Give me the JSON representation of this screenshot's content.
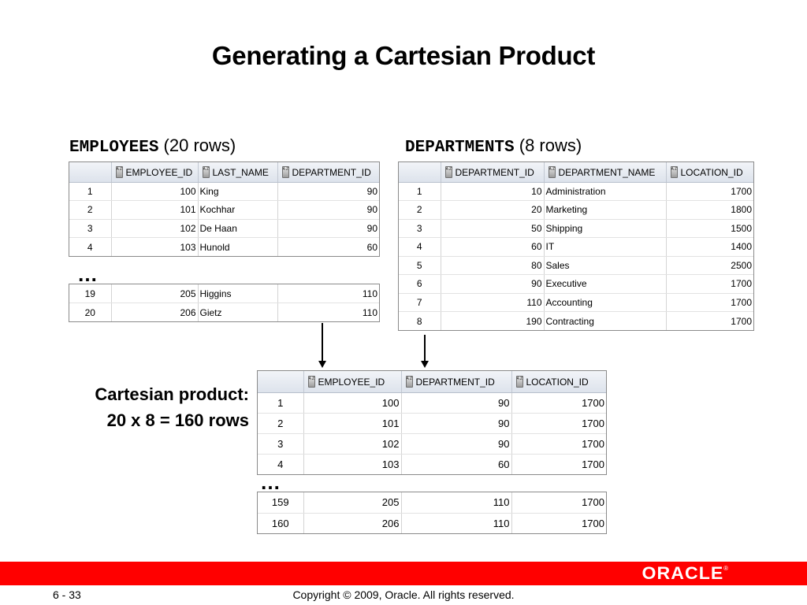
{
  "title": "Generating a Cartesian Product",
  "employees": {
    "caption_table": "EMPLOYEES",
    "caption_rows": "(20 rows)",
    "headers": [
      "EMPLOYEE_ID",
      "LAST_NAME",
      "DEPARTMENT_ID"
    ],
    "rows_top": [
      [
        "1",
        "100",
        "King",
        "90"
      ],
      [
        "2",
        "101",
        "Kochhar",
        "90"
      ],
      [
        "3",
        "102",
        "De Haan",
        "90"
      ],
      [
        "4",
        "103",
        "Hunold",
        "60"
      ]
    ],
    "ellipsis": "…",
    "rows_bottom": [
      [
        "19",
        "205",
        "Higgins",
        "110"
      ],
      [
        "20",
        "206",
        "Gietz",
        "110"
      ]
    ]
  },
  "departments": {
    "caption_table": "DEPARTMENTS",
    "caption_rows": "(8 rows)",
    "headers": [
      "DEPARTMENT_ID",
      "DEPARTMENT_NAME",
      "LOCATION_ID"
    ],
    "rows": [
      [
        "1",
        "10",
        "Administration",
        "1700"
      ],
      [
        "2",
        "20",
        "Marketing",
        "1800"
      ],
      [
        "3",
        "50",
        "Shipping",
        "1500"
      ],
      [
        "4",
        "60",
        "IT",
        "1400"
      ],
      [
        "5",
        "80",
        "Sales",
        "2500"
      ],
      [
        "6",
        "90",
        "Executive",
        "1700"
      ],
      [
        "7",
        "110",
        "Accounting",
        "1700"
      ],
      [
        "8",
        "190",
        "Contracting",
        "1700"
      ]
    ]
  },
  "cartesian": {
    "label_line1": "Cartesian product:",
    "label_line2": "20 x 8 = 160 rows",
    "headers": [
      "EMPLOYEE_ID",
      "DEPARTMENT_ID",
      "LOCATION_ID"
    ],
    "rows_top": [
      [
        "1",
        "100",
        "90",
        "1700"
      ],
      [
        "2",
        "101",
        "90",
        "1700"
      ],
      [
        "3",
        "102",
        "90",
        "1700"
      ],
      [
        "4",
        "103",
        "60",
        "1700"
      ]
    ],
    "ellipsis": "…",
    "rows_bottom": [
      [
        "159",
        "205",
        "110",
        "1700"
      ],
      [
        "160",
        "206",
        "110",
        "1700"
      ]
    ]
  },
  "sort_icon_glyph": "A Z",
  "footer": {
    "logo": "ORACLE",
    "logo_mark": "®",
    "page": "6 - 33",
    "copyright": "Copyright © 2009, Oracle. All rights reserved.",
    "bar_color": "#ff0000"
  }
}
